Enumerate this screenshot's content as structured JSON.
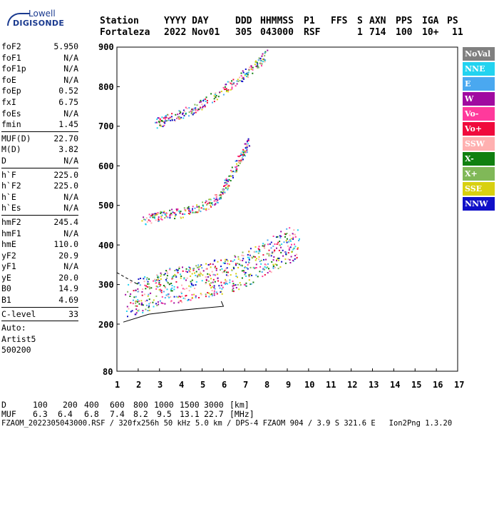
{
  "logo": {
    "top": "Lowell",
    "bottom": "DIGISONDE"
  },
  "header": {
    "labels": [
      "Station",
      "YYYY DAY",
      "DDD",
      "HHMMSS",
      "P1",
      "FFS",
      "S",
      "AXN",
      "PPS",
      "IGA",
      "PS"
    ],
    "values": [
      "Fortaleza",
      "2022 Nov01",
      "305",
      "043000",
      "RSF",
      "1",
      "714",
      "100",
      "10+",
      "11"
    ]
  },
  "params_group1": [
    {
      "k": "foF2",
      "v": "5.950"
    },
    {
      "k": "foF1",
      "v": "N/A"
    },
    {
      "k": "foF1p",
      "v": "N/A"
    },
    {
      "k": "foE",
      "v": "N/A"
    },
    {
      "k": "foEp",
      "v": "0.52"
    },
    {
      "k": "fxI",
      "v": "6.75"
    },
    {
      "k": "foEs",
      "v": "N/A"
    },
    {
      "k": "fmin",
      "v": "1.45"
    }
  ],
  "params_group2": [
    {
      "k": "MUF(D)",
      "v": "22.70"
    },
    {
      "k": "M(D)",
      "v": "3.82"
    },
    {
      "k": "D",
      "v": "N/A"
    }
  ],
  "params_group3": [
    {
      "k": "h`F",
      "v": "225.0"
    },
    {
      "k": "h`F2",
      "v": "225.0"
    },
    {
      "k": "h`E",
      "v": "N/A"
    },
    {
      "k": "h`Es",
      "v": "N/A"
    }
  ],
  "params_group4": [
    {
      "k": "hmF2",
      "v": "245.4"
    },
    {
      "k": "hmF1",
      "v": "N/A"
    },
    {
      "k": "hmE",
      "v": "110.0"
    },
    {
      "k": "yF2",
      "v": "20.9"
    },
    {
      "k": "yF1",
      "v": "N/A"
    },
    {
      "k": "yE",
      "v": "20.0"
    },
    {
      "k": "B0",
      "v": "14.9"
    },
    {
      "k": "B1",
      "v": "4.69"
    }
  ],
  "clevel": {
    "k": "C-level",
    "v": "33"
  },
  "auto": {
    "line1": "Auto:",
    "line2": "Artist5",
    "line3": "500200"
  },
  "legend": [
    {
      "label": "NoVal",
      "color": "#808080"
    },
    {
      "label": "NNE",
      "color": "#22d3f0"
    },
    {
      "label": "E",
      "color": "#4aa8f0"
    },
    {
      "label": "W",
      "color": "#a00aa0"
    },
    {
      "label": "Vo-",
      "color": "#ff3a9c"
    },
    {
      "label": "Vo+",
      "color": "#f00a3c"
    },
    {
      "label": "SSW",
      "color": "#ffb0b0"
    },
    {
      "label": "X-",
      "color": "#108010"
    },
    {
      "label": "X+",
      "color": "#80b858"
    },
    {
      "label": "SSE",
      "color": "#d8d010"
    },
    {
      "label": "NNW",
      "color": "#1010c8"
    }
  ],
  "chart_data": {
    "type": "scatter",
    "title": "",
    "xlabel": "",
    "ylabel": "",
    "xlim": [
      1,
      17
    ],
    "ylim": [
      80,
      900
    ],
    "x_ticks": [
      "1",
      "2",
      "3",
      "4",
      "5",
      "6",
      "7",
      "8",
      "9",
      "10",
      "11",
      "12",
      "13",
      "14",
      "15",
      "16",
      "17"
    ],
    "y_ticks": [
      "80",
      "200",
      "300",
      "400",
      "500",
      "600",
      "700",
      "800",
      "900"
    ],
    "series": [
      {
        "color": "#a00aa0",
        "points": [
          [
            1.4,
            225
          ],
          [
            2.0,
            232
          ],
          [
            2.5,
            240
          ],
          [
            3.0,
            250
          ],
          [
            3.5,
            258
          ],
          [
            4.0,
            262
          ],
          [
            4.5,
            268
          ],
          [
            5.0,
            272
          ],
          [
            5.5,
            278
          ],
          [
            6.0,
            282
          ],
          [
            6.5,
            290
          ],
          [
            7.0,
            300
          ],
          [
            7.5,
            315
          ],
          [
            8.0,
            330
          ],
          [
            8.5,
            345
          ],
          [
            9.0,
            360
          ],
          [
            9.5,
            370
          ]
        ]
      },
      {
        "color": "#f00a3c",
        "points": [
          [
            2.2,
            460
          ],
          [
            3.0,
            472
          ],
          [
            4.0,
            480
          ],
          [
            5.0,
            495
          ],
          [
            5.8,
            520
          ],
          [
            6.2,
            560
          ],
          [
            6.8,
            620
          ],
          [
            7.2,
            660
          ]
        ]
      },
      {
        "color": "#108010",
        "points": [
          [
            2.8,
            705
          ],
          [
            3.5,
            720
          ],
          [
            4.5,
            740
          ],
          [
            5.5,
            770
          ],
          [
            6.5,
            810
          ],
          [
            7.5,
            850
          ],
          [
            8.0,
            880
          ]
        ]
      }
    ]
  },
  "bottom": {
    "d_label": "D",
    "d_values": [
      "100",
      "200",
      "400",
      "600",
      "800",
      "1000",
      "1500",
      "3000",
      "[km]"
    ],
    "muf_label": "MUF",
    "muf_values": [
      "6.3",
      "6.4",
      "6.8",
      "7.4",
      "8.2",
      "9.5",
      "13.1",
      "22.7",
      "[MHz]"
    ],
    "footer": "FZAOM_2022305043000.RSF / 320fx256h 50 kHz 5.0 km / DPS-4 FZAOM 904 / 3.9 S 321.6 E   Ion2Png 1.3.20"
  }
}
